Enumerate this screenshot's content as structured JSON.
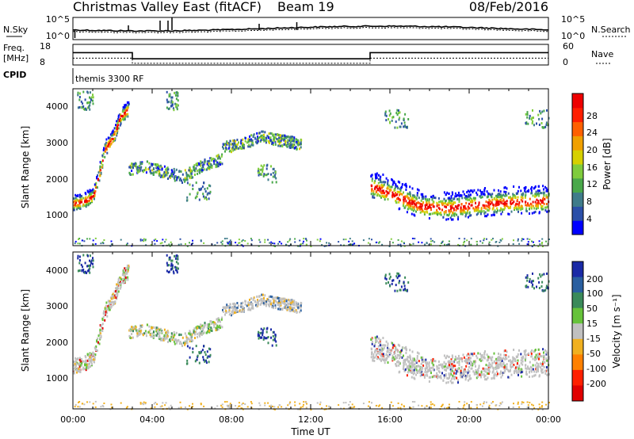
{
  "header": {
    "station": "Christmas Valley East (fitACF)",
    "beam": "Beam 19",
    "date": "08/Feb/2016"
  },
  "noise_panel": {
    "left_label": "N.Sky",
    "right_label": "N.Search",
    "left_ticks": [
      "10^5",
      "10^0"
    ],
    "right_ticks": [
      "10^5",
      "10^0"
    ]
  },
  "freq_panel": {
    "left_label_1": "Freq.",
    "left_label_2": "[MHz]",
    "right_label": "Nave",
    "left_ticks": [
      "18",
      "8"
    ],
    "right_ticks": [
      "60",
      "0"
    ],
    "freq_segments": [
      {
        "start": 0.0,
        "end": 3.0,
        "value": 14
      },
      {
        "start": 3.0,
        "end": 15.0,
        "value": 11
      },
      {
        "start": 15.0,
        "end": 24.0,
        "value": 14
      }
    ],
    "nave_segments": [
      {
        "start": 0.0,
        "end": 3.0,
        "value": 20
      },
      {
        "start": 3.0,
        "end": 15.0,
        "value": 5
      },
      {
        "start": 15.0,
        "end": 24.0,
        "value": 20
      }
    ]
  },
  "cpid": {
    "label": "CPID",
    "program": "themis 3300 RF"
  },
  "xaxis": {
    "label": "Time UT",
    "ticks": [
      "00:00",
      "04:00",
      "08:00",
      "12:00",
      "16:00",
      "20:00",
      "00:00"
    ]
  },
  "power_panel": {
    "ylabel": "Slant Range [km]",
    "yticks": [
      "4000",
      "3000",
      "2000",
      "1000"
    ],
    "colorbar_label": "Power [dB]",
    "colorbar_ticks": [
      "28",
      "24",
      "20",
      "16",
      "12",
      "8",
      "4"
    ]
  },
  "velocity_panel": {
    "ylabel": "Slant Range [km]",
    "yticks": [
      "4000",
      "3000",
      "2000",
      "1000"
    ],
    "colorbar_label": "Velocity [m s⁻¹]",
    "colorbar_ticks": [
      "200",
      "100",
      "50",
      "15",
      "-15",
      "-50",
      "-100",
      "-200"
    ]
  },
  "colors": {
    "power_scale": [
      "#0000ff",
      "#2b4fa8",
      "#3f7c8a",
      "#49a84a",
      "#7fcc3c",
      "#d6d000",
      "#f0a000",
      "#ff6000",
      "#ff1e00",
      "#ee0000"
    ],
    "velocity_scale": [
      "#1a2aa6",
      "#2a5fa0",
      "#3a8a5a",
      "#66c23a",
      "#c0c0c0",
      "#f0b020",
      "#ff8000",
      "#ff2000",
      "#e00000"
    ]
  },
  "chart_data": {
    "type": "heatmap",
    "title": "Christmas Valley East (fitACF) Beam 19 08/Feb/2016",
    "xlabel": "Time UT",
    "xlim": [
      0,
      24
    ],
    "ylabel": "Slant Range [km]",
    "ylim": [
      180,
      4500
    ],
    "power_range_db": [
      0,
      30
    ],
    "velocity_range_ms": [
      -250,
      250
    ],
    "scatter_regions": [
      {
        "name": "early-band",
        "t": [
          0.0,
          0.5,
          1.0,
          1.3,
          1.6,
          2.0,
          2.4,
          2.8
        ],
        "range_km": [
          1400,
          1450,
          1600,
          2200,
          2900,
          3200,
          3800,
          4000
        ]
      },
      {
        "name": "morning-band",
        "t": [
          2.8,
          3.5,
          4.5,
          5.5,
          6.5,
          7.5
        ],
        "range_km": [
          2300,
          2400,
          2250,
          2100,
          2400,
          2600
        ]
      },
      {
        "name": "day-band",
        "t": [
          7.5,
          8.5,
          9.5,
          10.5,
          11.5
        ],
        "range_km": [
          2900,
          3000,
          3200,
          3100,
          3000
        ]
      },
      {
        "name": "evening-band",
        "t": [
          15.0,
          16.0,
          17.5,
          19.0,
          20.5,
          22.0,
          24.0
        ],
        "range_km": [
          1900,
          1700,
          1350,
          1300,
          1400,
          1450,
          1500
        ]
      }
    ]
  }
}
